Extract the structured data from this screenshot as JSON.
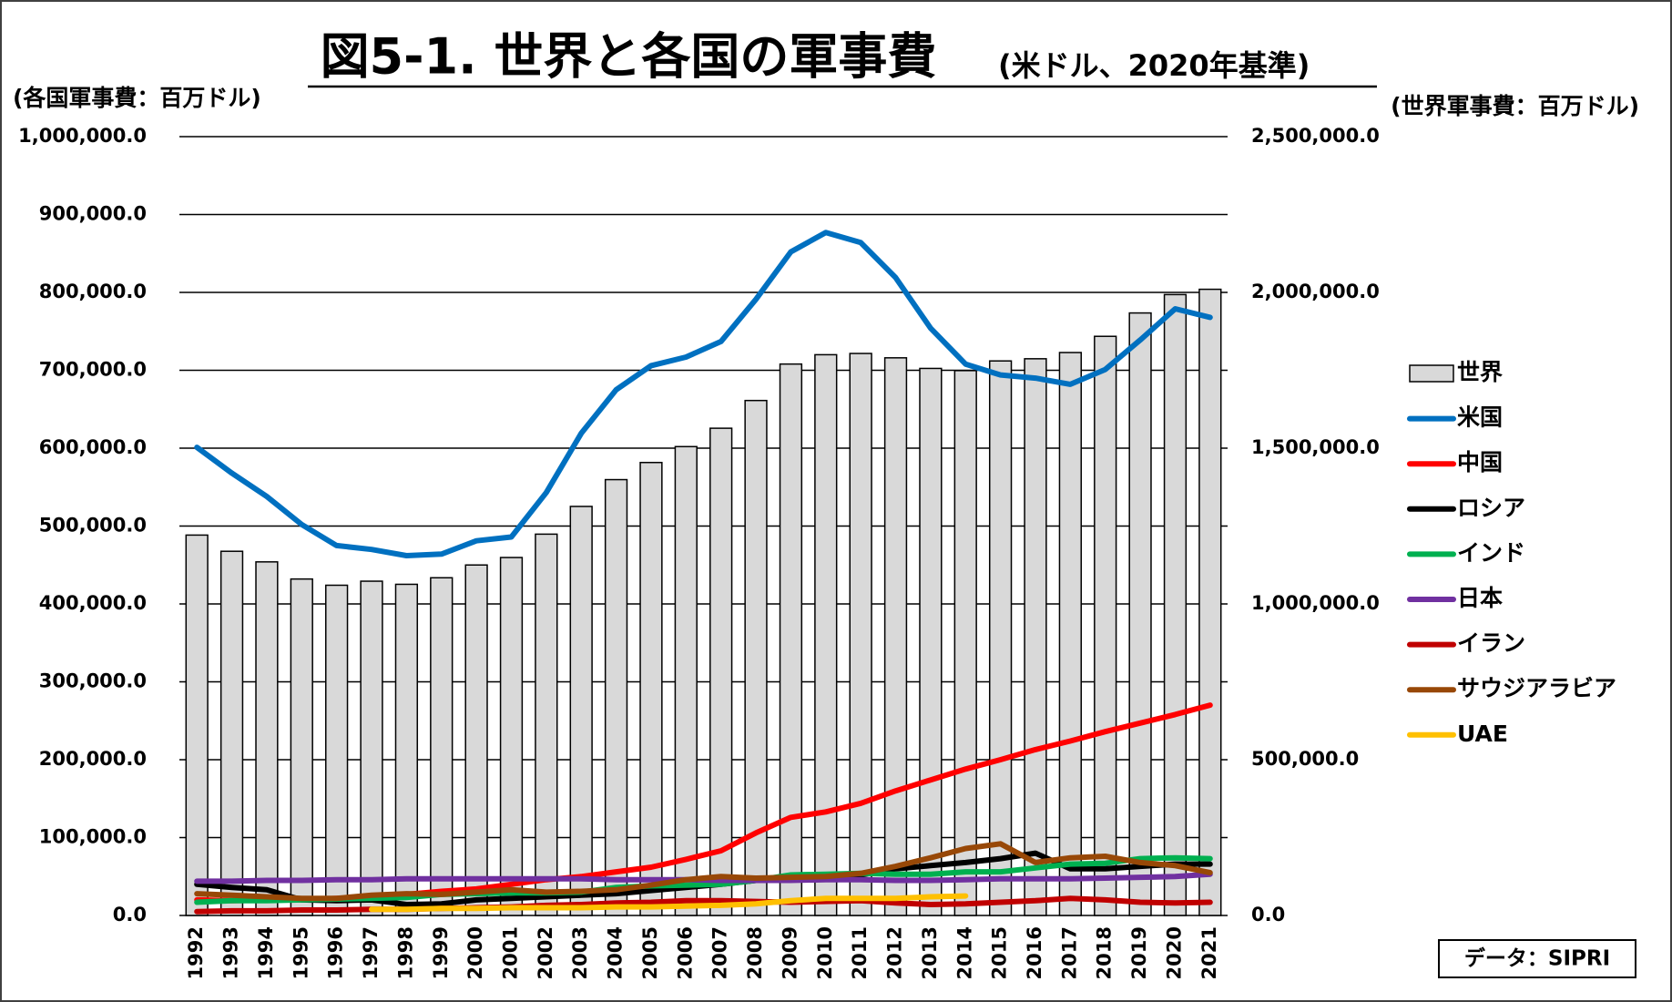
{
  "chart_data": {
    "type": "combo",
    "title": "図5-1. 世界と各国の軍事費",
    "subtitle": "(米ドル、2020年基準)",
    "y_label": "(各国軍事費：百万ドル)",
    "y2_label": "(世界軍事費：百万ドル)",
    "source": "データ：SIPRI",
    "categories": [
      "1992",
      "1993",
      "1994",
      "1995",
      "1996",
      "1997",
      "1998",
      "1999",
      "2000",
      "2001",
      "2002",
      "2003",
      "2004",
      "2005",
      "2006",
      "2007",
      "2008",
      "2009",
      "2010",
      "2011",
      "2012",
      "2013",
      "2014",
      "2015",
      "2016",
      "2017",
      "2018",
      "2019",
      "2020",
      "2021"
    ],
    "ylim": [
      0,
      1000000
    ],
    "yticks": [
      {
        "value": 0,
        "label": "0.0"
      },
      {
        "value": 100000,
        "label": "100,000.0"
      },
      {
        "value": 200000,
        "label": "200,000.0"
      },
      {
        "value": 300000,
        "label": "300,000.0"
      },
      {
        "value": 400000,
        "label": "400,000.0"
      },
      {
        "value": 500000,
        "label": "500,000.0"
      },
      {
        "value": 600000,
        "label": "600,000.0"
      },
      {
        "value": 700000,
        "label": "700,000.0"
      },
      {
        "value": 800000,
        "label": "800,000.0"
      },
      {
        "value": 900000,
        "label": "900,000.0"
      },
      {
        "value": 1000000,
        "label": "1,000,000.0"
      }
    ],
    "y2lim": [
      0,
      2500000
    ],
    "y2ticks": [
      {
        "value": 0,
        "label": "0.0"
      },
      {
        "value": 500000,
        "label": "500,000.0"
      },
      {
        "value": 1000000,
        "label": "1,000,000.0"
      },
      {
        "value": 1500000,
        "label": "1,500,000.0"
      },
      {
        "value": 2000000,
        "label": "2,000,000.0"
      },
      {
        "value": 2500000,
        "label": "2,500,000.0"
      }
    ],
    "grid": true,
    "legend": "right",
    "series": [
      {
        "name": "世界",
        "type": "bar",
        "axis": "y2",
        "color": "#d9d9d9",
        "values": [
          1221000,
          1169000,
          1135000,
          1080000,
          1060000,
          1073000,
          1063000,
          1084000,
          1125000,
          1149000,
          1224000,
          1313000,
          1399000,
          1454000,
          1505000,
          1564000,
          1653000,
          1770000,
          1800000,
          1804000,
          1790000,
          1756000,
          1749000,
          1780000,
          1787000,
          1807000,
          1859000,
          1934000,
          1993000,
          2010000
        ]
      },
      {
        "name": "米国",
        "type": "line",
        "color": "#0070c0",
        "values": [
          601000,
          568000,
          538000,
          502000,
          475000,
          470000,
          462000,
          464000,
          481000,
          486000,
          543000,
          619000,
          675000,
          706000,
          717000,
          737000,
          791000,
          852000,
          877000,
          864000,
          819000,
          754000,
          708000,
          694000,
          690000,
          682000,
          701000,
          739000,
          779000,
          768000
        ]
      },
      {
        "name": "中国",
        "type": "line",
        "color": "#ff0000",
        "values": [
          20000,
          19000,
          20000,
          20000,
          22000,
          23000,
          27000,
          31000,
          34000,
          40000,
          46000,
          50000,
          56000,
          62000,
          72000,
          83000,
          106000,
          126000,
          133000,
          144000,
          160000,
          174000,
          188000,
          200000,
          213000,
          224000,
          236000,
          247000,
          258000,
          270000
        ]
      },
      {
        "name": "ロシア",
        "type": "line",
        "color": "#000000",
        "values": [
          40000,
          36000,
          33000,
          20000,
          19000,
          20000,
          14000,
          15000,
          20000,
          22000,
          24000,
          26000,
          28000,
          32000,
          36000,
          40000,
          45000,
          48000,
          49000,
          52000,
          60000,
          64000,
          68000,
          73000,
          80000,
          60000,
          60000,
          63000,
          66000,
          66000
        ]
      },
      {
        "name": "インド",
        "type": "line",
        "color": "#00b050",
        "values": [
          17000,
          19000,
          19000,
          20000,
          21000,
          22000,
          23000,
          27000,
          28000,
          29000,
          29000,
          30000,
          36000,
          38000,
          39000,
          40000,
          45000,
          52000,
          53000,
          54000,
          53000,
          53000,
          56000,
          56000,
          61000,
          66000,
          67000,
          73000,
          74000,
          73000
        ]
      },
      {
        "name": "日本",
        "type": "line",
        "color": "#7030a0",
        "values": [
          44000,
          44000,
          45000,
          45000,
          46000,
          46000,
          47000,
          47000,
          47000,
          47000,
          47000,
          47000,
          46000,
          46000,
          46000,
          45000,
          45000,
          45000,
          46000,
          46000,
          45000,
          45000,
          46000,
          47000,
          47000,
          47000,
          48000,
          49000,
          50000,
          53000
        ]
      },
      {
        "name": "イラン",
        "type": "line",
        "color": "#c00000",
        "values": [
          5000,
          6000,
          6000,
          7000,
          7000,
          8000,
          8000,
          9000,
          10000,
          11000,
          13000,
          14000,
          16000,
          17000,
          19000,
          19000,
          18000,
          17000,
          18000,
          19000,
          16000,
          14000,
          15000,
          17000,
          19000,
          22000,
          20000,
          17000,
          16000,
          17000
        ]
      },
      {
        "name": "サウジアラビア",
        "type": "line",
        "color": "#984807",
        "values": [
          28000,
          26000,
          24000,
          22000,
          22000,
          26000,
          28000,
          27000,
          30000,
          33000,
          30000,
          31000,
          33000,
          39000,
          46000,
          50000,
          48000,
          49000,
          50000,
          54000,
          63000,
          74000,
          86000,
          92000,
          68000,
          74000,
          76000,
          68000,
          64000,
          55000
        ]
      },
      {
        "name": "UAE",
        "type": "line",
        "color": "#ffc000",
        "values": [
          null,
          null,
          null,
          null,
          null,
          8000,
          8000,
          9000,
          9000,
          10000,
          10000,
          10000,
          11000,
          11000,
          12000,
          13000,
          15000,
          19000,
          22000,
          22000,
          22000,
          24000,
          25000,
          null,
          null,
          null,
          null,
          null,
          null,
          null
        ]
      }
    ]
  }
}
